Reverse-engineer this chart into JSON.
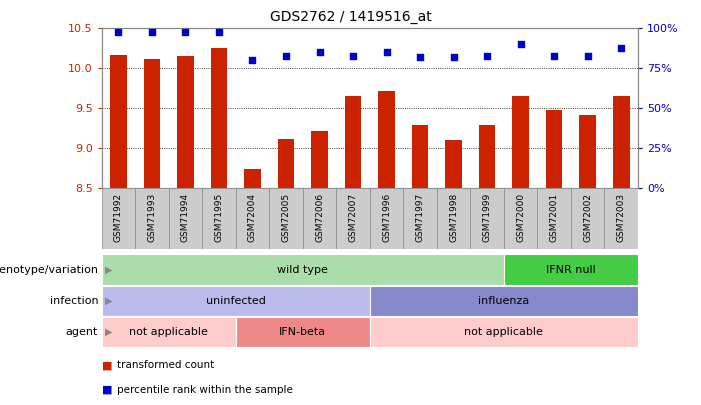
{
  "title": "GDS2762 / 1419516_at",
  "samples": [
    "GSM71992",
    "GSM71993",
    "GSM71994",
    "GSM71995",
    "GSM72004",
    "GSM72005",
    "GSM72006",
    "GSM72007",
    "GSM71996",
    "GSM71997",
    "GSM71998",
    "GSM71999",
    "GSM72000",
    "GSM72001",
    "GSM72002",
    "GSM72003"
  ],
  "transformed_count": [
    10.17,
    10.12,
    10.16,
    10.26,
    8.74,
    9.12,
    9.22,
    9.65,
    9.72,
    9.29,
    9.1,
    9.29,
    9.65,
    9.48,
    9.42,
    9.65
  ],
  "percentile_rank": [
    98,
    98,
    98,
    98,
    80,
    83,
    85,
    83,
    85,
    82,
    82,
    83,
    90,
    83,
    83,
    88
  ],
  "ylim_left": [
    8.5,
    10.5
  ],
  "ylim_right": [
    0,
    100
  ],
  "yticks_left": [
    8.5,
    9.0,
    9.5,
    10.0,
    10.5
  ],
  "yticks_right": [
    0,
    25,
    50,
    75,
    100
  ],
  "bar_color": "#CC2200",
  "dot_color": "#0000CC",
  "bar_width": 0.5,
  "annotation_rows": [
    {
      "label": "genotype/variation",
      "segments": [
        {
          "text": "wild type",
          "start": 0,
          "end": 12,
          "color": "#AADDAA"
        },
        {
          "text": "IFNR null",
          "start": 12,
          "end": 16,
          "color": "#44CC44"
        }
      ]
    },
    {
      "label": "infection",
      "segments": [
        {
          "text": "uninfected",
          "start": 0,
          "end": 8,
          "color": "#BBBBEE"
        },
        {
          "text": "influenza",
          "start": 8,
          "end": 16,
          "color": "#8888CC"
        }
      ]
    },
    {
      "label": "agent",
      "segments": [
        {
          "text": "not applicable",
          "start": 0,
          "end": 4,
          "color": "#FFCCCC"
        },
        {
          "text": "IFN-beta",
          "start": 4,
          "end": 8,
          "color": "#EE8888"
        },
        {
          "text": "not applicable",
          "start": 8,
          "end": 16,
          "color": "#FFCCCC"
        }
      ]
    }
  ],
  "legend_items": [
    {
      "label": "transformed count",
      "color": "#CC2200"
    },
    {
      "label": "percentile rank within the sample",
      "color": "#0000CC"
    }
  ],
  "ax_bg_color": "#FFFFFF",
  "plot_area_bg": "#FFFFFF",
  "grid_color": "#000000",
  "tick_label_color_left": "#CC2200",
  "tick_label_color_right": "#0000CC",
  "xlabel_area_bg": "#CCCCCC",
  "xlabel_area_border": "#888888"
}
